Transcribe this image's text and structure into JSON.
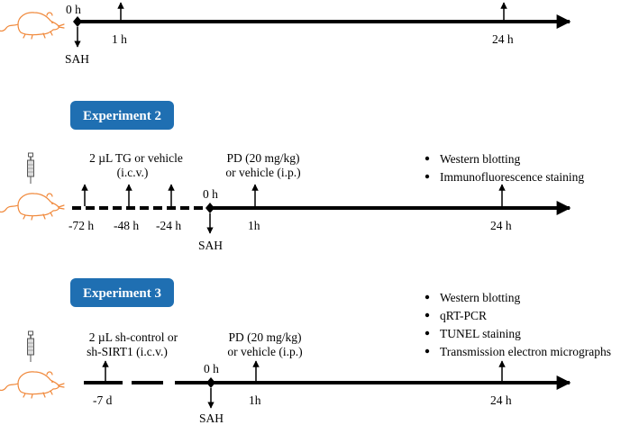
{
  "colors": {
    "badge": "#1f6fb2",
    "rat": "#f0883a",
    "line": "#000000"
  },
  "experiment1": {
    "ticks": {
      "zero": "0 h",
      "one": "1 h",
      "twentyfour": "24 h"
    },
    "sah": "SAH"
  },
  "experiment2": {
    "badge": "Experiment 2",
    "injection_line1": "2 µL TG or vehicle",
    "injection_line2": "(i.c.v.)",
    "pd_line1": "PD (20 mg/kg)",
    "pd_line2": "or vehicle (i.p.)",
    "ticks": {
      "m72": "-72 h",
      "m48": "-48 h",
      "m24": "-24 h",
      "zero": "0 h",
      "one": "1h",
      "twentyfour": "24 h"
    },
    "sah": "SAH",
    "assays": [
      "Western blotting",
      "Immunofluorescence staining"
    ]
  },
  "experiment3": {
    "badge": "Experiment 3",
    "injection_line1": "2 µL sh-control  or",
    "injection_line2": "sh-SIRT1 (i.c.v.)",
    "pd_line1": "PD (20 mg/kg)",
    "pd_line2": "or vehicle (i.p.)",
    "ticks": {
      "m7d": "-7 d",
      "zero": "0 h",
      "one": "1h",
      "twentyfour": "24 h"
    },
    "sah": "SAH",
    "assays": [
      "Western blotting",
      "qRT-PCR",
      "TUNEL staining",
      "Transmission electron micrographs"
    ]
  },
  "icons": [
    "rat-icon",
    "syringe-icon"
  ]
}
